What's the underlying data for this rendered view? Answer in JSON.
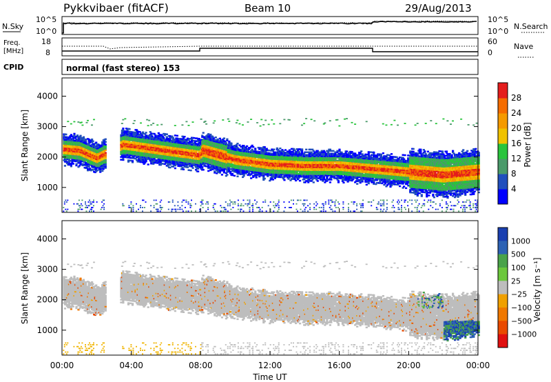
{
  "header": {
    "station": "Pykkvibaer (fitACF)",
    "beam": "Beam 10",
    "date": "29/Aug/2013"
  },
  "noise_panel": {
    "left_label": "N.Sky",
    "left_ticks": [
      "10^5",
      "10^0"
    ],
    "right_ticks": [
      "10^5",
      "10^0"
    ],
    "right_label": "N.Search"
  },
  "freq_panel": {
    "left_label_line1": "Freq.",
    "left_label_line2": "[MHz]",
    "left_ticks": [
      "18",
      "8"
    ],
    "right_ticks": [
      "60",
      "0"
    ],
    "right_label": "Nave"
  },
  "cpid_panel": {
    "label": "CPID",
    "program": "normal (fast stereo) 153"
  },
  "colors": {
    "power": [
      "#0000ff",
      "#214fbd",
      "#4a9a6a",
      "#29c43c",
      "#f0c200",
      "#f59a00",
      "#f56c00",
      "#e41d1d"
    ],
    "velocity_pos": [
      "#1a3fb0",
      "#2d62b4",
      "#4aa34a",
      "#6cc83c"
    ],
    "velocity_gnd": "#bdbdbd",
    "velocity_neg": [
      "#f0a000",
      "#f07800",
      "#e94a00",
      "#e01010"
    ]
  },
  "chart_data": [
    {
      "type": "heatmap",
      "title": "Power",
      "ylabel": "Slant Range [km]",
      "xlabel": "",
      "ylim": [
        180,
        4600
      ],
      "yticks": [
        "1000",
        "2000",
        "3000",
        "4000"
      ],
      "colorbar_label": "Power [dB]",
      "colorbar_ticks": [
        "4",
        "8",
        "12",
        "16",
        "20",
        "24",
        "28"
      ],
      "echo_band_center_km": [
        {
          "t": 0,
          "km": 2250
        },
        {
          "t": 1,
          "km": 2200
        },
        {
          "t": 2,
          "km": 1950
        },
        {
          "t": 3.5,
          "km": 2400
        },
        {
          "t": 6,
          "km": 2200
        },
        {
          "t": 7.9,
          "km": 2050
        },
        {
          "t": 8.1,
          "km": 2200
        },
        {
          "t": 10,
          "km": 1900
        },
        {
          "t": 12,
          "km": 1750
        },
        {
          "t": 14,
          "km": 1700
        },
        {
          "t": 16,
          "km": 1700
        },
        {
          "t": 18,
          "km": 1600
        },
        {
          "t": 20,
          "km": 1500
        },
        {
          "t": 22,
          "km": 1400
        },
        {
          "t": 24,
          "km": 1500
        }
      ]
    },
    {
      "type": "heatmap",
      "title": "Velocity",
      "ylabel": "Slant Range [km]",
      "xlabel": "Time UT",
      "ylim": [
        180,
        4600
      ],
      "yticks": [
        "1000",
        "2000",
        "3000",
        "4000"
      ],
      "colorbar_label": "Velocity [m s⁻¹]",
      "colorbar_ticks": [
        "1000",
        "500",
        "100",
        "25",
        "−25",
        "−100",
        "−500",
        "−1000"
      ],
      "xticks": [
        "00:00",
        "04:00",
        "08:00",
        "12:00",
        "16:00",
        "20:00",
        "00:00"
      ],
      "xlim_hours": [
        0,
        24
      ]
    }
  ]
}
